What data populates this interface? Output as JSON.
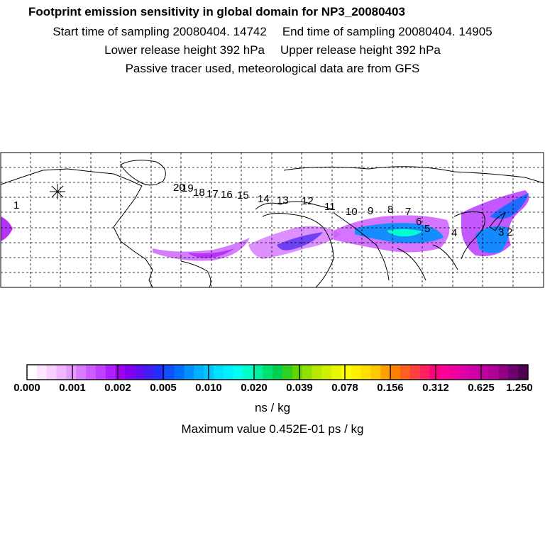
{
  "header": {
    "title": "Footprint emission sensitivity in global domain for NP3_20080403",
    "start_time": "Start time of sampling 20080404. 14742",
    "end_time": "End time of sampling 20080404. 14905",
    "lower_height": "Lower release height  392 hPa",
    "upper_height": "Upper release height  392 hPa",
    "tracer_note": "Passive tracer used, meteorological data are from GFS"
  },
  "map": {
    "trajectory_labels": [
      "1",
      "20",
      "19",
      "18",
      "17",
      "16",
      "15",
      "14",
      "13",
      "12",
      "11",
      "10",
      "9",
      "8",
      "7",
      "6",
      "5",
      "4",
      "3",
      "2"
    ],
    "colors": {
      "land_outline": "#000000",
      "grid": "#000000",
      "frame": "#000000"
    }
  },
  "colorbar": {
    "tick_labels": [
      "0.000",
      "0.001",
      "0.002",
      "0.005",
      "0.010",
      "0.020",
      "0.039",
      "0.078",
      "0.156",
      "0.312",
      "0.625",
      "1.250"
    ],
    "colors": [
      "#ffffff",
      "#fde6ff",
      "#f8d0ff",
      "#f0b6ff",
      "#e69cff",
      "#d87cff",
      "#cc5cff",
      "#c040ff",
      "#b020ff",
      "#a000f0",
      "#8000f0",
      "#6010f0",
      "#4020f0",
      "#2030ff",
      "#1050ff",
      "#0070ff",
      "#0090ff",
      "#00b0ff",
      "#00c8ff",
      "#00e0ff",
      "#00f0ff",
      "#00ffee",
      "#00ffcc",
      "#00f0a0",
      "#00e070",
      "#00d050",
      "#30d020",
      "#60d800",
      "#90e000",
      "#b8e800",
      "#d0f000",
      "#e8f800",
      "#ffff00",
      "#fff000",
      "#ffe000",
      "#ffc800",
      "#ffa000",
      "#ff8000",
      "#ff6020",
      "#ff4040",
      "#ff2060",
      "#ff0080",
      "#ff0099",
      "#f000a0",
      "#e000a8",
      "#d000a8",
      "#c000a0",
      "#b00098",
      "#900080",
      "#700070",
      "#500050"
    ],
    "units": "ns / kg",
    "max_value": "Maximum value  0.452E-01 ps / kg"
  }
}
